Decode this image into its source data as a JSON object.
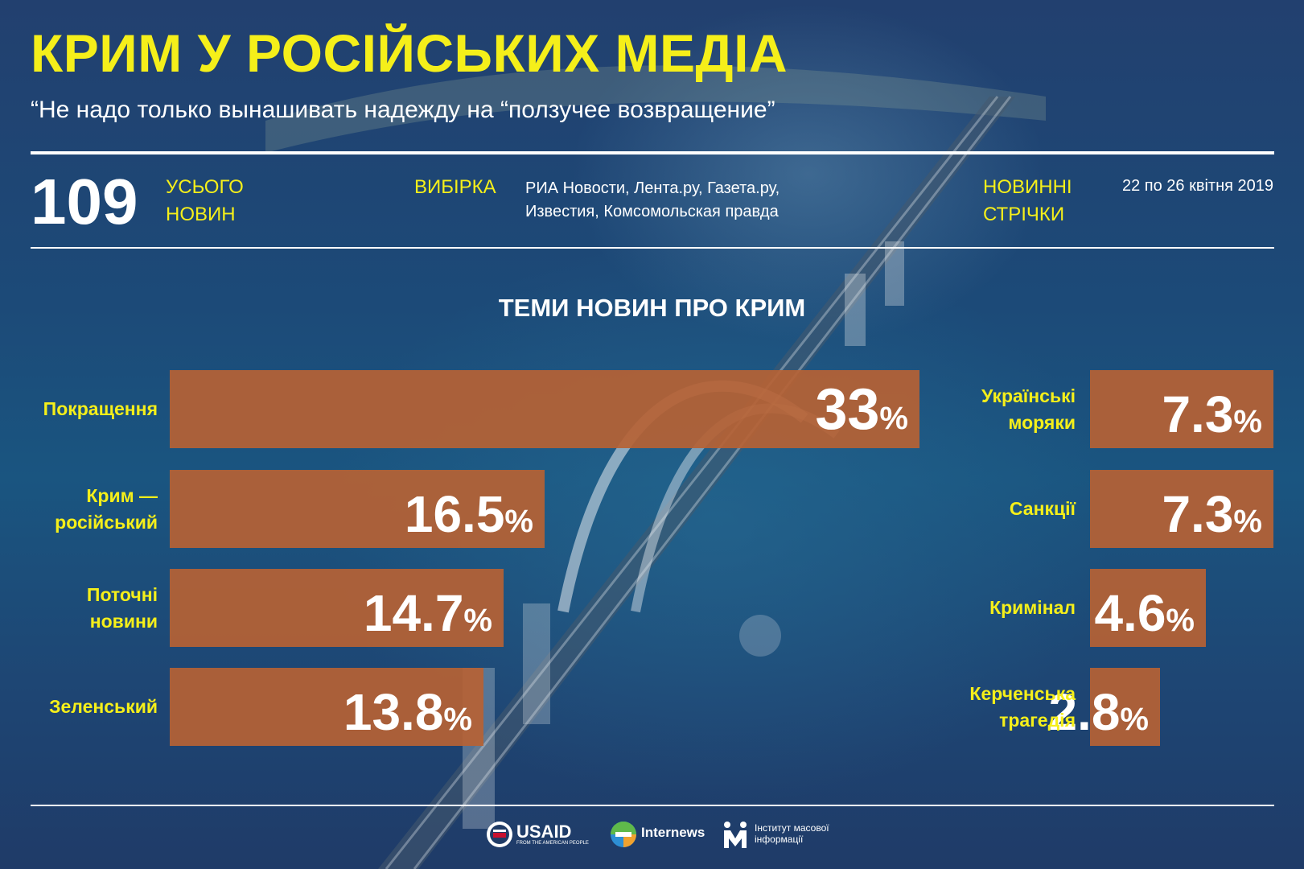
{
  "header": {
    "title": "КРИМ У РОСІЙСЬКИХ МЕДІА",
    "subtitle": "“Не надо только вынашивать надежду на “ползучее возвращение”"
  },
  "stats": {
    "total_number": "109",
    "total_label_line1": "УСЬОГО",
    "total_label_line2": "НОВИН",
    "sample_label": "ВИБІРКА",
    "sample_value": "РИА Новости, Лента.ру, Газета.ру, Известия, Комсомольская правда",
    "feeds_label_line1": "НОВИННІ",
    "feeds_label_line2": "СТРІЧКИ",
    "period": "22 по 26 квітня 2019"
  },
  "colors": {
    "accent_yellow": "#f5ef1a",
    "bar_orange": "#b66234",
    "background_navy": "#1f3b66"
  },
  "chart_data": {
    "type": "bar",
    "title": "ТЕМИ НОВИН ПРО КРИМ",
    "unit": "%",
    "left_column": {
      "categories": [
        [
          "Покращення"
        ],
        [
          "Крим —",
          "російський"
        ],
        [
          "Поточні",
          "новини"
        ],
        [
          "Зеленський"
        ]
      ],
      "values": [
        33,
        16.5,
        14.7,
        13.8
      ],
      "labels": [
        "33",
        "16.5",
        "14.7",
        "13.8"
      ]
    },
    "right_column": {
      "categories": [
        [
          "Українські",
          "моряки"
        ],
        [
          "Санкції"
        ],
        [
          "Кримінал"
        ],
        [
          "Керченська",
          "трагедія"
        ]
      ],
      "values": [
        7.3,
        7.3,
        4.6,
        2.8
      ],
      "labels": [
        "7.3",
        "7.3",
        "4.6",
        "2.8"
      ]
    }
  },
  "footer": {
    "logos": [
      {
        "name": "USAID",
        "tagline": "FROM THE AMERICAN PEOPLE",
        "icon": "usaid-seal-icon"
      },
      {
        "name": "Internews",
        "icon": "internews-globe-icon"
      },
      {
        "name": "Інститут масової інформації",
        "line1": "Інститут масової",
        "line2": "інформації",
        "icon": "imi-logo-icon"
      }
    ]
  }
}
